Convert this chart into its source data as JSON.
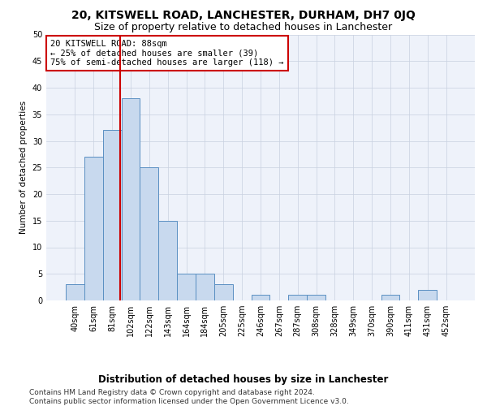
{
  "title": "20, KITSWELL ROAD, LANCHESTER, DURHAM, DH7 0JQ",
  "subtitle": "Size of property relative to detached houses in Lanchester",
  "xlabel": "Distribution of detached houses by size in Lanchester",
  "ylabel": "Number of detached properties",
  "bin_labels": [
    "40sqm",
    "61sqm",
    "81sqm",
    "102sqm",
    "122sqm",
    "143sqm",
    "164sqm",
    "184sqm",
    "205sqm",
    "225sqm",
    "246sqm",
    "267sqm",
    "287sqm",
    "308sqm",
    "328sqm",
    "349sqm",
    "370sqm",
    "390sqm",
    "411sqm",
    "431sqm",
    "452sqm"
  ],
  "bar_heights": [
    3,
    27,
    32,
    38,
    25,
    15,
    5,
    5,
    3,
    0,
    1,
    0,
    1,
    1,
    0,
    0,
    0,
    1,
    0,
    2,
    0
  ],
  "bar_color": "#c8d9ee",
  "bar_edge_color": "#5a8fc2",
  "background_color": "#eef2fa",
  "grid_color": "#c8d0e0",
  "vline_x_idx": 2,
  "vline_x_offset": 0.45,
  "vline_color": "#cc0000",
  "annotation_text": "20 KITSWELL ROAD: 88sqm\n← 25% of detached houses are smaller (39)\n75% of semi-detached houses are larger (118) →",
  "annotation_box_color": "#ffffff",
  "annotation_box_edge_color": "#cc0000",
  "footer_line1": "Contains HM Land Registry data © Crown copyright and database right 2024.",
  "footer_line2": "Contains public sector information licensed under the Open Government Licence v3.0.",
  "ylim": [
    0,
    50
  ],
  "yticks": [
    0,
    5,
    10,
    15,
    20,
    25,
    30,
    35,
    40,
    45,
    50
  ],
  "title_fontsize": 10,
  "subtitle_fontsize": 9,
  "xlabel_fontsize": 8.5,
  "ylabel_fontsize": 7.5,
  "tick_fontsize": 7,
  "annotation_fontsize": 7.5,
  "footer_fontsize": 6.5
}
